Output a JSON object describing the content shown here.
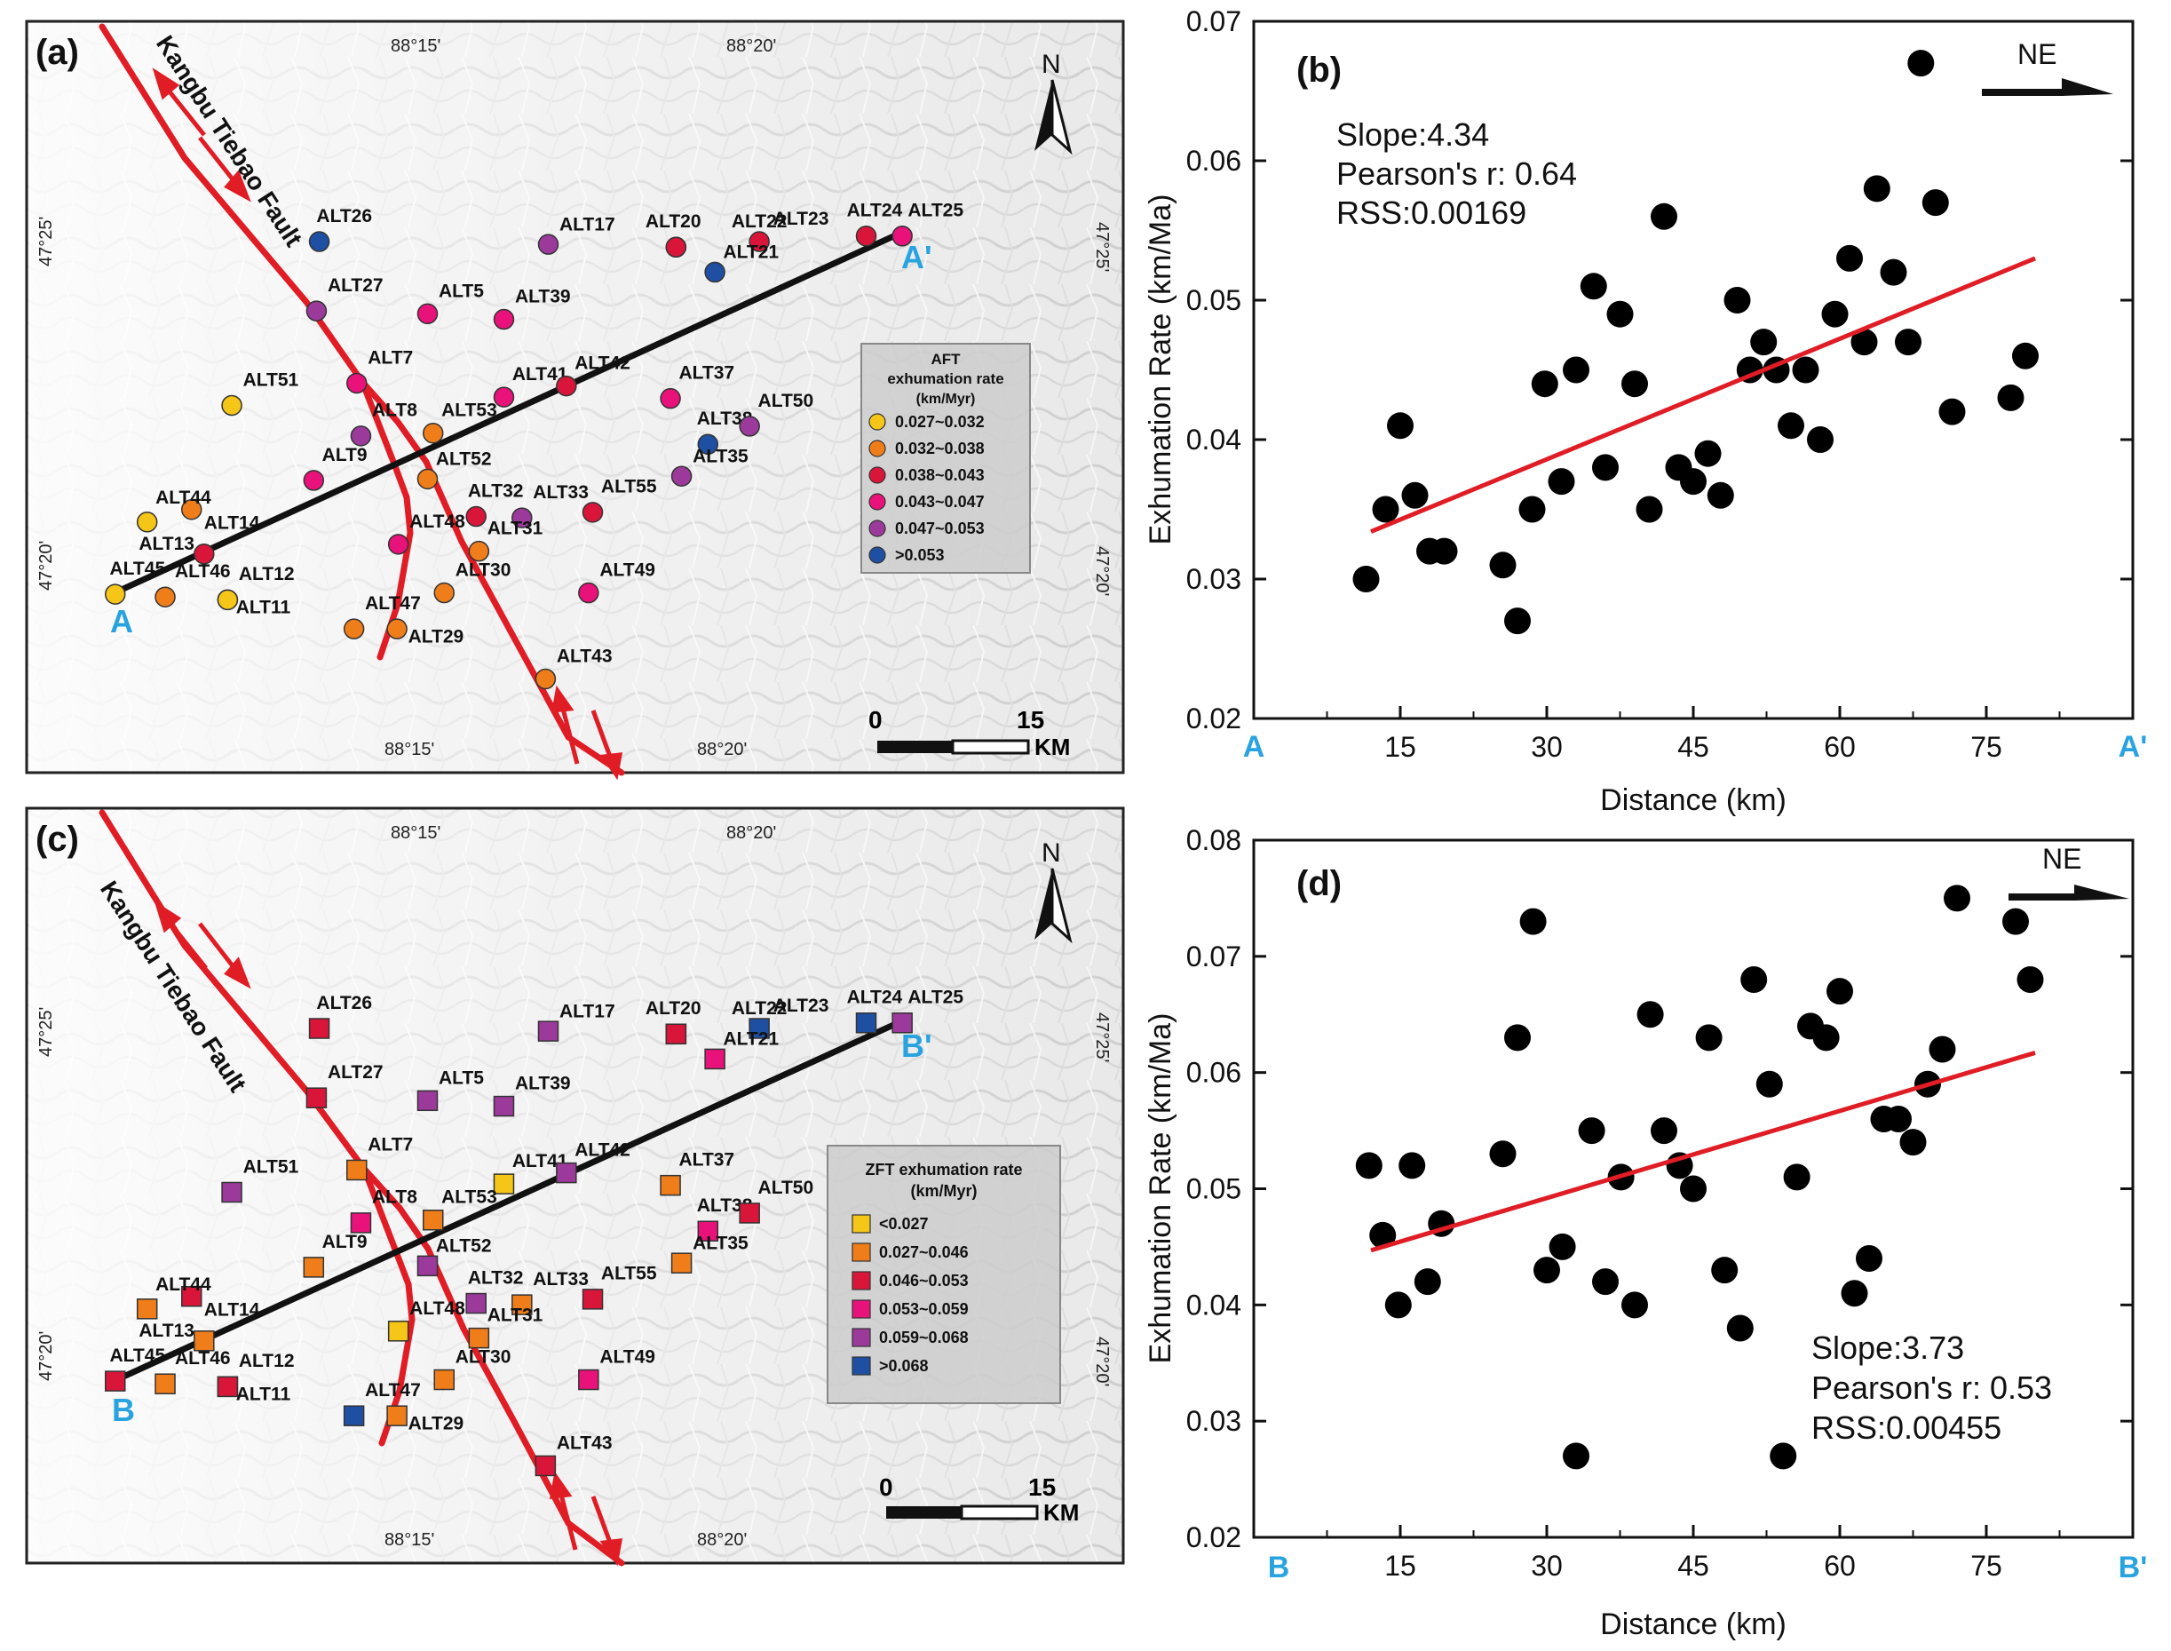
{
  "panel_a": {
    "label": "(a)",
    "fault_name": "Kangbu Tiebao Fault",
    "north": "N",
    "coords_top": [
      "88°15'",
      "88°20'"
    ],
    "coords_bottom": [
      "88°15'",
      "88°20'"
    ],
    "coords_left": [
      "47°25'",
      "47°20'"
    ],
    "coords_right": [
      "47°25'",
      "47°20'"
    ],
    "profile_start": "A",
    "profile_end": "A'",
    "scale_zero": "0",
    "scale_max": "15",
    "scale_unit": "KM",
    "legend": {
      "title": [
        "AFT",
        "exhumation rate",
        "(km/Myr)"
      ],
      "classes": [
        {
          "label": "0.027~0.032",
          "color": "#f5c518"
        },
        {
          "label": "0.032~0.038",
          "color": "#ef7d1a"
        },
        {
          "label": "0.038~0.043",
          "color": "#d9163a"
        },
        {
          "label": "0.043~0.047",
          "color": "#e8127a"
        },
        {
          "label": "0.047~0.053",
          "color": "#9b3a9b"
        },
        {
          "label": ">0.053",
          "color": "#1f4fa3"
        }
      ]
    },
    "samples": [
      {
        "name": "ALT26",
        "c": 5
      },
      {
        "name": "ALT17",
        "c": 4
      },
      {
        "name": "ALT20",
        "c": 3
      },
      {
        "name": "ALT22",
        "c": 2
      },
      {
        "name": "ALT23",
        "c": 2
      },
      {
        "name": "ALT21",
        "c": 5
      },
      {
        "name": "ALT24",
        "c": 2
      },
      {
        "name": "ALT25",
        "c": 3
      },
      {
        "name": "ALT27",
        "c": 4
      },
      {
        "name": "ALT5",
        "c": 3
      },
      {
        "name": "ALT39",
        "c": 3
      },
      {
        "name": "ALT7",
        "c": 3
      },
      {
        "name": "ALT41",
        "c": 3
      },
      {
        "name": "ALT42",
        "c": 2
      },
      {
        "name": "ALT37",
        "c": 3
      },
      {
        "name": "ALT51",
        "c": 0
      },
      {
        "name": "ALT8",
        "c": 4
      },
      {
        "name": "ALT53",
        "c": 1
      },
      {
        "name": "ALT38",
        "c": 5
      },
      {
        "name": "ALT50",
        "c": 4
      },
      {
        "name": "ALT9",
        "c": 3
      },
      {
        "name": "ALT52",
        "c": 1
      },
      {
        "name": "ALT35",
        "c": 4
      },
      {
        "name": "ALT44",
        "c": 1
      },
      {
        "name": "ALT32",
        "c": 2
      },
      {
        "name": "ALT33",
        "c": 4
      },
      {
        "name": "ALT55",
        "c": 2
      },
      {
        "name": "ALT13",
        "c": 0
      },
      {
        "name": "ALT14",
        "c": 2
      },
      {
        "name": "ALT48",
        "c": 3
      },
      {
        "name": "ALT31",
        "c": 1
      },
      {
        "name": "ALT45",
        "c": 0
      },
      {
        "name": "ALT46",
        "c": 1
      },
      {
        "name": "ALT12",
        "c": 0
      },
      {
        "name": "ALT11",
        "c": 0
      },
      {
        "name": "ALT30",
        "c": 1
      },
      {
        "name": "ALT49",
        "c": 3
      },
      {
        "name": "ALT47",
        "c": 1
      },
      {
        "name": "ALT29",
        "c": 1
      },
      {
        "name": "ALT43",
        "c": 1
      }
    ]
  },
  "panel_c": {
    "label": "(c)",
    "fault_name": "Kangbu Tiebao Fault",
    "north": "N",
    "coords_top": [
      "88°15'",
      "88°20'"
    ],
    "coords_bottom": [
      "88°15'",
      "88°20'"
    ],
    "coords_left": [
      "47°25'",
      "47°20'"
    ],
    "coords_right": [
      "47°25'",
      "47°20'"
    ],
    "profile_start": "B",
    "profile_end": "B'",
    "scale_zero": "0",
    "scale_max": "15",
    "scale_unit": "KM",
    "legend": {
      "title": [
        "ZFT exhumation rate",
        "(km/Myr)"
      ],
      "classes": [
        {
          "label": "<0.027",
          "color": "#f5c518"
        },
        {
          "label": "0.027~0.046",
          "color": "#ef7d1a"
        },
        {
          "label": "0.046~0.053",
          "color": "#d9163a"
        },
        {
          "label": "0.053~0.059",
          "color": "#e8127a"
        },
        {
          "label": "0.059~0.068",
          "color": "#9b3a9b"
        },
        {
          "label": ">0.068",
          "color": "#1f4fa3"
        }
      ]
    },
    "samples": [
      {
        "name": "ALT26",
        "c": 2
      },
      {
        "name": "ALT17",
        "c": 4
      },
      {
        "name": "ALT20",
        "c": 2
      },
      {
        "name": "ALT22",
        "c": 2
      },
      {
        "name": "ALT23",
        "c": 5
      },
      {
        "name": "ALT21",
        "c": 3
      },
      {
        "name": "ALT24",
        "c": 5
      },
      {
        "name": "ALT25",
        "c": 4
      },
      {
        "name": "ALT27",
        "c": 2
      },
      {
        "name": "ALT5",
        "c": 4
      },
      {
        "name": "ALT39",
        "c": 4
      },
      {
        "name": "ALT7",
        "c": 1
      },
      {
        "name": "ALT41",
        "c": 0
      },
      {
        "name": "ALT42",
        "c": 4
      },
      {
        "name": "ALT37",
        "c": 1
      },
      {
        "name": "ALT51",
        "c": 4
      },
      {
        "name": "ALT8",
        "c": 3
      },
      {
        "name": "ALT53",
        "c": 1
      },
      {
        "name": "ALT38",
        "c": 3
      },
      {
        "name": "ALT50",
        "c": 2
      },
      {
        "name": "ALT9",
        "c": 1
      },
      {
        "name": "ALT52",
        "c": 4
      },
      {
        "name": "ALT35",
        "c": 1
      },
      {
        "name": "ALT44",
        "c": 2
      },
      {
        "name": "ALT32",
        "c": 4
      },
      {
        "name": "ALT33",
        "c": 1
      },
      {
        "name": "ALT55",
        "c": 2
      },
      {
        "name": "ALT13",
        "c": 1
      },
      {
        "name": "ALT14",
        "c": 1
      },
      {
        "name": "ALT48",
        "c": 0
      },
      {
        "name": "ALT31",
        "c": 1
      },
      {
        "name": "ALT45",
        "c": 2
      },
      {
        "name": "ALT46",
        "c": 1
      },
      {
        "name": "ALT12",
        "c": 2
      },
      {
        "name": "ALT11",
        "c": 2
      },
      {
        "name": "ALT30",
        "c": 1
      },
      {
        "name": "ALT49",
        "c": 3
      },
      {
        "name": "ALT47",
        "c": 5
      },
      {
        "name": "ALT29",
        "c": 1
      },
      {
        "name": "ALT43",
        "c": 2
      }
    ]
  },
  "chart_data": [
    {
      "panel": "(b)",
      "type": "scatter",
      "xlabel": "Distance (km)",
      "ylabel": "Exhumation Rate (km/Ma)",
      "direction_label": "NE",
      "x_start_label": "A",
      "x_end_label": "A'",
      "xlim": [
        0,
        90
      ],
      "ylim": [
        0.02,
        0.07
      ],
      "xticks": [
        15,
        30,
        45,
        60,
        75
      ],
      "yticks": [
        0.02,
        0.03,
        0.04,
        0.05,
        0.06,
        0.07
      ],
      "stats": [
        "Slope:4.34",
        "Pearson's r: 0.64",
        "RSS:0.00169"
      ],
      "fit_line": {
        "x": [
          12,
          80
        ],
        "y": [
          0.0334,
          0.053
        ]
      },
      "points": [
        [
          11.5,
          0.03
        ],
        [
          13.5,
          0.035
        ],
        [
          15.0,
          0.041
        ],
        [
          16.5,
          0.036
        ],
        [
          18.0,
          0.032
        ],
        [
          19.5,
          0.032
        ],
        [
          25.5,
          0.031
        ],
        [
          27.0,
          0.027
        ],
        [
          28.5,
          0.035
        ],
        [
          29.8,
          0.044
        ],
        [
          31.5,
          0.037
        ],
        [
          33.0,
          0.045
        ],
        [
          34.8,
          0.051
        ],
        [
          36.0,
          0.038
        ],
        [
          37.5,
          0.049
        ],
        [
          39.0,
          0.044
        ],
        [
          40.5,
          0.035
        ],
        [
          42.0,
          0.056
        ],
        [
          43.5,
          0.038
        ],
        [
          45.0,
          0.037
        ],
        [
          46.5,
          0.039
        ],
        [
          47.8,
          0.036
        ],
        [
          49.5,
          0.05
        ],
        [
          50.8,
          0.045
        ],
        [
          52.2,
          0.047
        ],
        [
          53.5,
          0.045
        ],
        [
          55.0,
          0.041
        ],
        [
          56.5,
          0.045
        ],
        [
          58.0,
          0.04
        ],
        [
          59.5,
          0.049
        ],
        [
          61.0,
          0.053
        ],
        [
          62.5,
          0.047
        ],
        [
          63.8,
          0.058
        ],
        [
          65.5,
          0.052
        ],
        [
          67.0,
          0.047
        ],
        [
          68.3,
          0.067
        ],
        [
          69.8,
          0.057
        ],
        [
          71.5,
          0.042
        ],
        [
          77.5,
          0.043
        ],
        [
          79.0,
          0.046
        ]
      ]
    },
    {
      "panel": "(d)",
      "type": "scatter",
      "xlabel": "Distance (km)",
      "ylabel": "Exhumation Rate (km/Ma)",
      "direction_label": "NE",
      "x_start_label": "B",
      "x_end_label": "B'",
      "xlim": [
        0,
        90
      ],
      "ylim": [
        0.02,
        0.08
      ],
      "xticks": [
        15,
        30,
        45,
        60,
        75
      ],
      "yticks": [
        0.02,
        0.03,
        0.04,
        0.05,
        0.06,
        0.07,
        0.08
      ],
      "stats": [
        "Slope:3.73",
        "Pearson's r: 0.53",
        "RSS:0.00455"
      ],
      "fit_line": {
        "x": [
          12,
          80
        ],
        "y": [
          0.0447,
          0.0617
        ]
      },
      "points": [
        [
          11.8,
          0.052
        ],
        [
          13.2,
          0.046
        ],
        [
          14.8,
          0.04
        ],
        [
          16.2,
          0.052
        ],
        [
          17.8,
          0.042
        ],
        [
          19.2,
          0.047
        ],
        [
          25.5,
          0.053
        ],
        [
          27.0,
          0.063
        ],
        [
          28.6,
          0.073
        ],
        [
          30.0,
          0.043
        ],
        [
          31.6,
          0.045
        ],
        [
          33.0,
          0.027
        ],
        [
          34.6,
          0.055
        ],
        [
          36.0,
          0.042
        ],
        [
          37.6,
          0.051
        ],
        [
          39.0,
          0.04
        ],
        [
          40.6,
          0.065
        ],
        [
          42.0,
          0.055
        ],
        [
          43.6,
          0.052
        ],
        [
          45.0,
          0.05
        ],
        [
          46.6,
          0.063
        ],
        [
          48.2,
          0.043
        ],
        [
          49.8,
          0.038
        ],
        [
          51.2,
          0.068
        ],
        [
          52.8,
          0.059
        ],
        [
          54.2,
          0.027
        ],
        [
          55.6,
          0.051
        ],
        [
          57.0,
          0.064
        ],
        [
          58.6,
          0.063
        ],
        [
          60.0,
          0.067
        ],
        [
          61.5,
          0.041
        ],
        [
          63.0,
          0.044
        ],
        [
          64.5,
          0.056
        ],
        [
          66.0,
          0.056
        ],
        [
          67.5,
          0.054
        ],
        [
          69.0,
          0.059
        ],
        [
          70.5,
          0.062
        ],
        [
          72.0,
          0.075
        ],
        [
          78.0,
          0.073
        ],
        [
          79.5,
          0.068
        ]
      ]
    }
  ]
}
